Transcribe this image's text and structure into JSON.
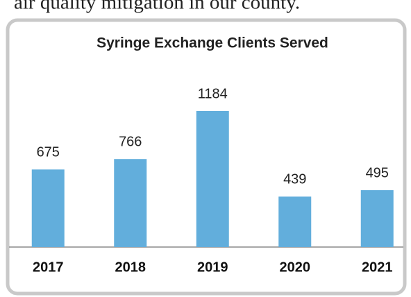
{
  "page_text": "air quality mitigation in our county.",
  "chart_data": {
    "type": "bar",
    "title": "Syringe Exchange Clients Served",
    "categories": [
      "2017",
      "2018",
      "2019",
      "2020",
      "2021"
    ],
    "values": [
      675,
      766,
      1184,
      439,
      495
    ],
    "color": "#62aedc"
  }
}
